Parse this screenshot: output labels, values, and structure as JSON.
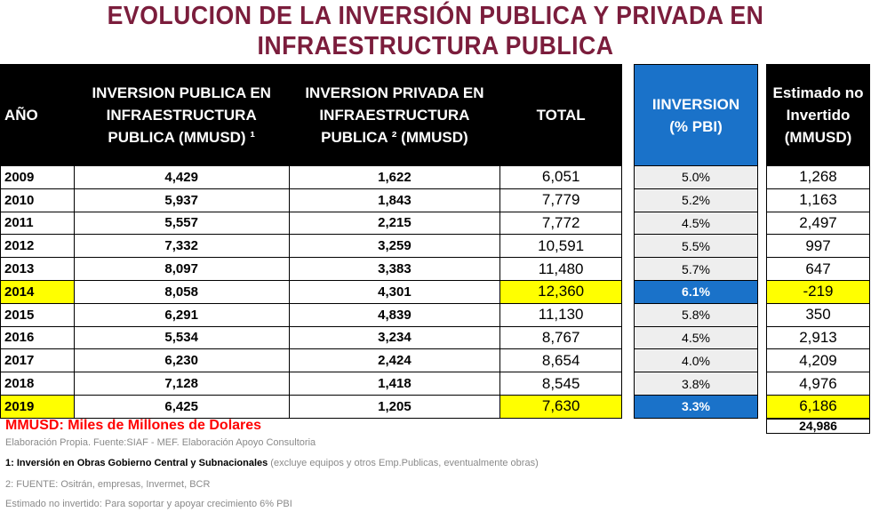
{
  "title_line1": "EVOLUCION DE LA INVERSIÓN  PUBLICA Y PRIVADA   EN",
  "title_line2": "INFRAESTRUCTURA PUBLICA",
  "headers": {
    "year": "AÑO",
    "public": "INVERSION PUBLICA EN INFRAESTRUCTURA PUBLICA (MMUSD) ¹",
    "private": "INVERSION PRIVADA EN INFRAESTRUCTURA PUBLICA ² (MMUSD)",
    "total": "TOTAL",
    "pbi": "IINVERSION (% PBI)",
    "estimated": "Estimado no Invertido (MMUSD)"
  },
  "rows": [
    {
      "year": "2009",
      "public": "4,429",
      "private": "1,622",
      "total": "6,051",
      "pbi": "5.0%",
      "estimated": "1,268"
    },
    {
      "year": "2010",
      "public": "5,937",
      "private": "1,843",
      "total": "7,779",
      "pbi": "5.2%",
      "estimated": "1,163"
    },
    {
      "year": "2011",
      "public": "5,557",
      "private": "2,215",
      "total": "7,772",
      "pbi": "4.5%",
      "estimated": "2,497"
    },
    {
      "year": "2012",
      "public": "7,332",
      "private": "3,259",
      "total": "10,591",
      "pbi": "5.5%",
      "estimated": "997"
    },
    {
      "year": "2013",
      "public": "8,097",
      "private": "3,383",
      "total": "11,480",
      "pbi": "5.7%",
      "estimated": "647"
    },
    {
      "year": "2014",
      "public": "8,058",
      "private": "4,301",
      "total": "12,360",
      "pbi": "6.1%",
      "estimated": "-219",
      "highlight": true
    },
    {
      "year": "2015",
      "public": "6,291",
      "private": "4,839",
      "total": "11,130",
      "pbi": "5.8%",
      "estimated": "350"
    },
    {
      "year": "2016",
      "public": "5,534",
      "private": "3,234",
      "total": "8,767",
      "pbi": "4.5%",
      "estimated": "2,913"
    },
    {
      "year": "2017",
      "public": "6,230",
      "private": "2,424",
      "total": "8,654",
      "pbi": "4.0%",
      "estimated": "4,209"
    },
    {
      "year": "2018",
      "public": "7,128",
      "private": "1,418",
      "total": "8,545",
      "pbi": "3.8%",
      "estimated": "4,976"
    },
    {
      "year": "2019",
      "public": "6,425",
      "private": "1,205",
      "total": "7,630",
      "pbi": "3.3%",
      "estimated": "6,186",
      "highlight": true
    }
  ],
  "estimated_total": "24,986",
  "unit_note": "MMUSD: Miles de Millones de Dolares",
  "notes": {
    "source": "Elaboración Propia. Fuente:SIAF - MEF. Elaboración Apoyo Consultoria",
    "note1_bold": "1: Inversión en Obras Gobierno Central y Subnacionales",
    "note1_rest": " (excluye equipos y otros Emp.Publicas, eventualmente obras)",
    "note2": "2: FUENTE: Ositrán, empresas, Invermet, BCR",
    "note3": "Estimado no invertido: Para soportar y apoyar crecimiento 6% PBI"
  },
  "colors": {
    "title": "#7b1d3c",
    "highlight": "#ffff00",
    "blue": "#1a72c9",
    "unit_note": "#ff0000"
  }
}
